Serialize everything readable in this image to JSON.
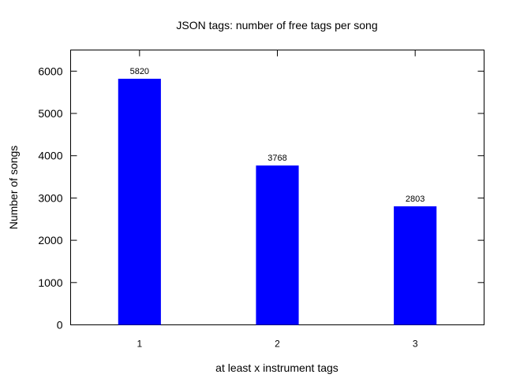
{
  "chart_data": {
    "type": "bar",
    "title": "JSON tags: number of free tags per song",
    "xlabel": "at least x instrument tags",
    "ylabel": "Number of songs",
    "categories": [
      "1",
      "2",
      "3"
    ],
    "values": [
      5820,
      3768,
      2803
    ],
    "value_labels": [
      "5820",
      "3768",
      "2803"
    ],
    "ylim": [
      0,
      6500
    ],
    "yticks": [
      0,
      1000,
      2000,
      3000,
      4000,
      5000,
      6000
    ],
    "grid": false,
    "legend": "none",
    "bar_color": "#0000ff"
  }
}
